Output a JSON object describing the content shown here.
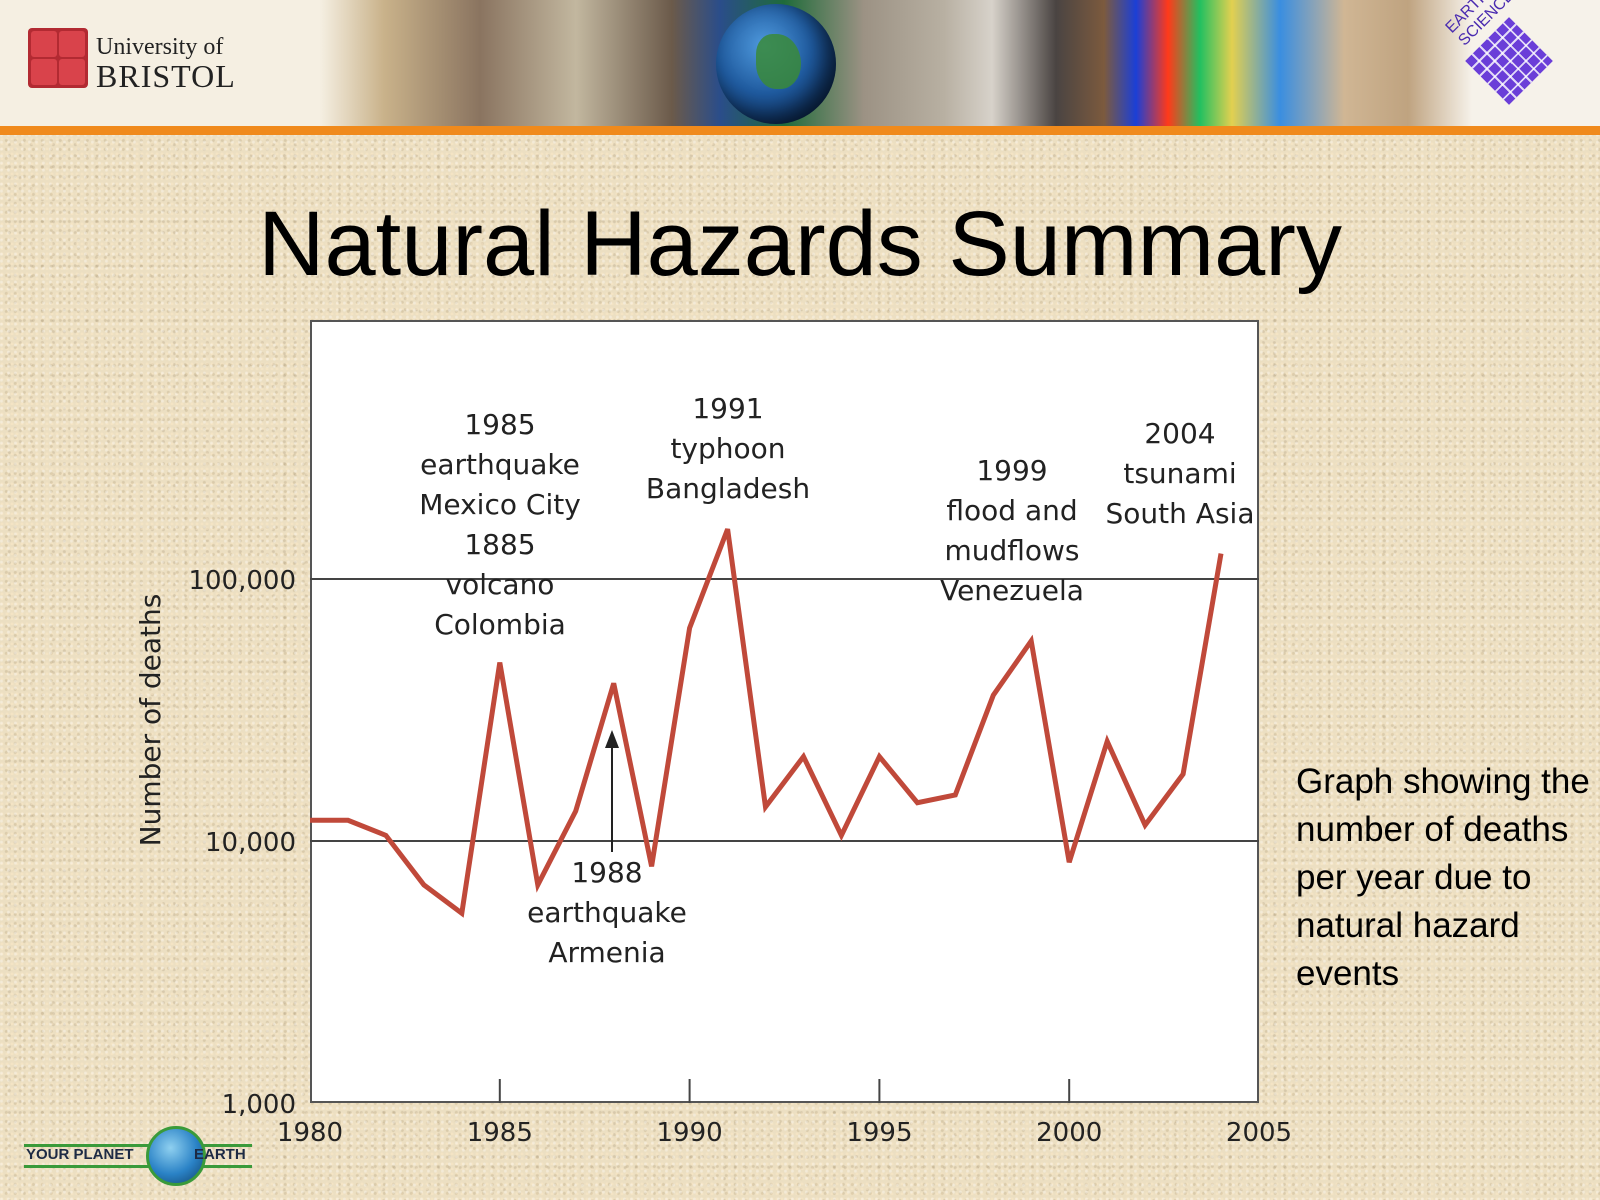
{
  "header": {
    "university_line1": "University of",
    "university_line2": "BRISTOL",
    "badge_text": "EARTH SCIENCES"
  },
  "slide": {
    "title": "Natural Hazards Summary",
    "caption": "Graph showing the number of deaths per year due to natural hazard events"
  },
  "footer": {
    "logo_left": "YOUR PLANET",
    "logo_right": "EARTH"
  },
  "colors": {
    "line": "#c0493a",
    "accent_stripe": "#f08a1c",
    "axis": "#555555"
  },
  "chart_data": {
    "type": "line",
    "title": "",
    "xlabel": "",
    "ylabel": "Number of deaths",
    "y_scale": "log",
    "xlim": [
      1980,
      2005
    ],
    "ylim": [
      1000,
      1000000
    ],
    "x_ticks": [
      1980,
      1985,
      1990,
      1995,
      2000,
      2005
    ],
    "x_tick_labels": [
      "1980",
      "1985",
      "1990",
      "1995",
      "2000",
      "2005"
    ],
    "y_ticks": [
      1000,
      10000,
      100000
    ],
    "y_tick_labels": [
      "1,000",
      "10,000",
      "100,000"
    ],
    "gridlines_y": [
      10000,
      100000
    ],
    "series": [
      {
        "x": [
          1980,
          1981,
          1982,
          1983,
          1984,
          1985,
          1986,
          1987,
          1988,
          1989,
          1990,
          1991,
          1992,
          1993,
          1994,
          1995,
          1996,
          1997,
          1998,
          1999,
          2000,
          2001,
          2002,
          2003,
          2004
        ],
        "y": [
          12000,
          12000,
          10500,
          6800,
          5300,
          48000,
          6800,
          13000,
          40000,
          8000,
          65000,
          155000,
          13500,
          21000,
          10500,
          21000,
          14000,
          15000,
          36000,
          58000,
          8300,
          24000,
          11500,
          18000,
          125000
        ]
      }
    ],
    "annotations": [
      {
        "lines": [
          "1985",
          "earthquake",
          "Mexico City",
          "1885",
          "volcano",
          "Colombia"
        ],
        "year": 1985
      },
      {
        "lines": [
          "1988",
          "earthquake",
          "Armenia"
        ],
        "year": 1988,
        "arrow": true
      },
      {
        "lines": [
          "1991",
          "typhoon",
          "Bangladesh"
        ],
        "year": 1991
      },
      {
        "lines": [
          "1999",
          "flood and",
          "mudflows",
          "Venezuela"
        ],
        "year": 1999
      },
      {
        "lines": [
          "2004",
          "tsunami",
          "South Asia"
        ],
        "year": 2004
      }
    ]
  }
}
